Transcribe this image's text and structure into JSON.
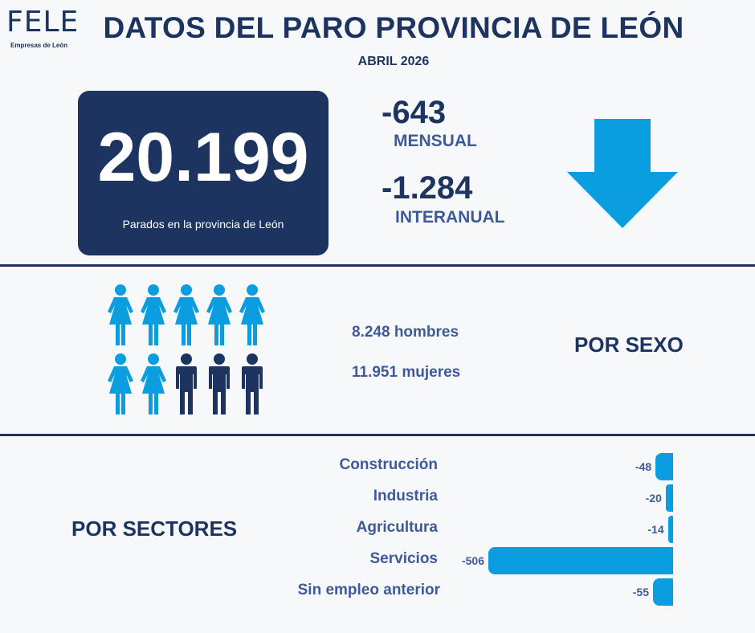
{
  "logo": {
    "name": "FELE",
    "tagline": "Empresas de León"
  },
  "header": {
    "title": "DATOS DEL PARO PROVINCIA DE LEÓN",
    "subtitle": "ABRIL 2026"
  },
  "total": {
    "value": "20.199",
    "caption": "Parados en la provincia de León"
  },
  "changes": {
    "mensual": {
      "value": "-643",
      "label": "MENSUAL"
    },
    "interanual": {
      "value": "-1.284",
      "label": "INTERANUAL"
    }
  },
  "colors": {
    "navy": "#1d3461",
    "accent_blue": "#0a9ee0",
    "label_blue": "#3f5a9a",
    "background": "#f7f8fa"
  },
  "icons": {
    "trend": "down-arrow-icon",
    "women": "woman-icon",
    "men": "man-icon"
  },
  "by_sex": {
    "men": "8.248 hombres",
    "women": "11.951 mujeres",
    "label": "POR SEXO",
    "pictogram": {
      "total_icons": 10,
      "women_icons": 7,
      "men_icons": 3
    }
  },
  "by_sector": {
    "label": "POR SECTORES",
    "chart_data": {
      "type": "bar",
      "orientation": "horizontal",
      "categories": [
        "Construcción",
        "Industria",
        "Agricultura",
        "Servicios",
        "Sin empleo anterior"
      ],
      "values": [
        -48,
        -20,
        -14,
        -506,
        -55
      ],
      "value_labels": [
        "-48",
        "-20",
        "-14",
        "-506",
        "-55"
      ]
    }
  }
}
